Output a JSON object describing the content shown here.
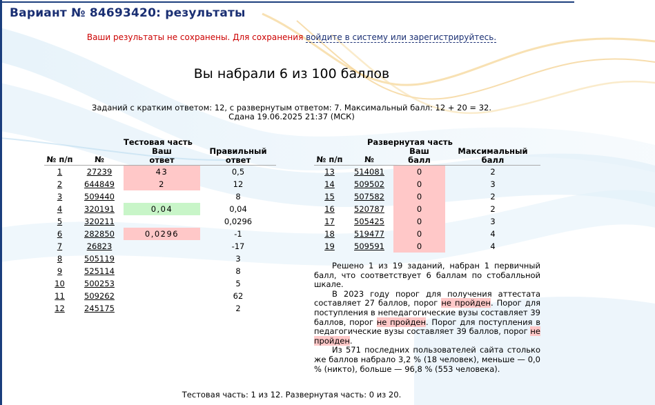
{
  "page": {
    "title": "Вариант № 84693420: результаты",
    "notice_prefix": "Ваши результаты не сохранены. Для сохранения ",
    "notice_link": "войдите в систему или зарегистрируйтесь.",
    "score_line": "Вы набрали 6 из 100 баллов",
    "info_line1": "Заданий с кратким ответом: 12, с развернутым ответом: 7. Максимальный балл: 12 + 20 = 32.",
    "info_line2": "Сдана 19.06.2025 21:37 (МСК)"
  },
  "test_part": {
    "caption": "Тестовая часть",
    "headers": {
      "num": "№ п/п",
      "id": "№",
      "your": "Ваш ответ",
      "correct": "Правильный ответ"
    },
    "rows": [
      {
        "num": "1",
        "id": "27239",
        "your": "43",
        "correct": "0,5",
        "status": "wrong"
      },
      {
        "num": "2",
        "id": "644849",
        "your": "2",
        "correct": "12",
        "status": "wrong"
      },
      {
        "num": "3",
        "id": "509440",
        "your": "",
        "correct": "8",
        "status": "empty"
      },
      {
        "num": "4",
        "id": "320191",
        "your": "0,04",
        "correct": "0,04",
        "status": "right"
      },
      {
        "num": "5",
        "id": "320211",
        "your": "",
        "correct": "0,0296",
        "status": "empty"
      },
      {
        "num": "6",
        "id": "282850",
        "your": "0,0296",
        "correct": "-1",
        "status": "wrong"
      },
      {
        "num": "7",
        "id": "26823",
        "your": "",
        "correct": "-17",
        "status": "empty"
      },
      {
        "num": "8",
        "id": "505119",
        "your": "",
        "correct": "3",
        "status": "empty"
      },
      {
        "num": "9",
        "id": "525114",
        "your": "",
        "correct": "8",
        "status": "empty"
      },
      {
        "num": "10",
        "id": "500253",
        "your": "",
        "correct": "5",
        "status": "empty"
      },
      {
        "num": "11",
        "id": "509262",
        "your": "",
        "correct": "62",
        "status": "empty"
      },
      {
        "num": "12",
        "id": "245175",
        "your": "",
        "correct": "2",
        "status": "empty"
      }
    ]
  },
  "extended_part": {
    "caption": "Развернутая часть",
    "headers": {
      "num": "№ п/п",
      "id": "№",
      "your": "Ваш балл",
      "max": "Максимальный балл"
    },
    "rows": [
      {
        "num": "13",
        "id": "514081",
        "your": "0",
        "max": "2"
      },
      {
        "num": "14",
        "id": "509502",
        "your": "0",
        "max": "3"
      },
      {
        "num": "15",
        "id": "507582",
        "your": "0",
        "max": "2"
      },
      {
        "num": "16",
        "id": "520787",
        "your": "0",
        "max": "2"
      },
      {
        "num": "17",
        "id": "505425",
        "your": "0",
        "max": "3"
      },
      {
        "num": "18",
        "id": "519477",
        "your": "0",
        "max": "4"
      },
      {
        "num": "19",
        "id": "509591",
        "your": "0",
        "max": "4"
      }
    ]
  },
  "summary": {
    "p1": "Решено 1 из 19 заданий, набран 1 первичный балл, что соответствует 6 баллам по стобалльной шкале.",
    "p2_a": "В 2023 году порог для получения аттестата составляет 27 баллов, порог ",
    "p2_np1": "не пройден",
    "p2_b": ". Порог для поступления в непедагогические вузы составляет 39 баллов, порог ",
    "p2_np2": "не пройден",
    "p2_c": ". Порог для поступления в педагогические вузы составляет 39 баллов, порог ",
    "p2_np3": "не пройден",
    "p2_d": ".",
    "p3": "Из 571 последних пользователей сайта столько же баллов набрало 3,2 % (18 человек), меньше — 0,0 % (никто), больше — 96,8 % (553 человека)."
  },
  "footer": "Тестовая часть: 1 из 12. Развернутая часть: 0 из 20.",
  "colors": {
    "title": "#1a2f73",
    "notice": "#cc0000",
    "wrong": "#ffc8c8",
    "right": "#c8f5c8"
  }
}
